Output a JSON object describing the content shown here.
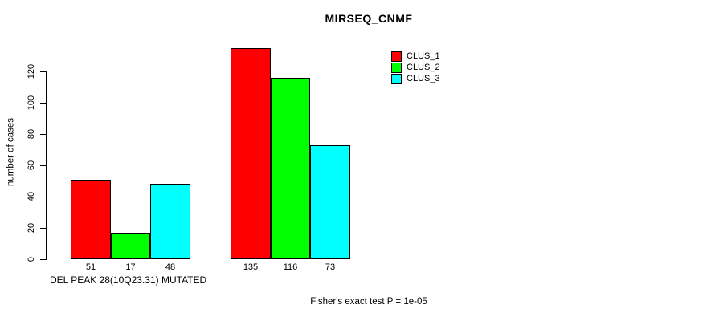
{
  "chart_data": {
    "type": "bar",
    "title": "MIRSEQ_CNMF",
    "ylabel": "number of cases",
    "xlabel": "DEL PEAK 28(10Q23.31) MUTATED",
    "annotation": "Fisher's exact test P = 1e-05",
    "ylim": [
      0,
      120
    ],
    "yticks": [
      0,
      20,
      40,
      60,
      80,
      100,
      120
    ],
    "grid": false,
    "legend_position": "top-right",
    "show_value_labels": true,
    "series": [
      {
        "name": "CLUS_1",
        "color": "#ff0000",
        "values": [
          51,
          135
        ]
      },
      {
        "name": "CLUS_2",
        "color": "#00ff00",
        "values": [
          17,
          116
        ]
      },
      {
        "name": "CLUS_3",
        "color": "#00ffff",
        "values": [
          48,
          73
        ]
      }
    ],
    "colors": {
      "background": "#ffffff",
      "axis": "#000000",
      "text": "#000000"
    }
  }
}
